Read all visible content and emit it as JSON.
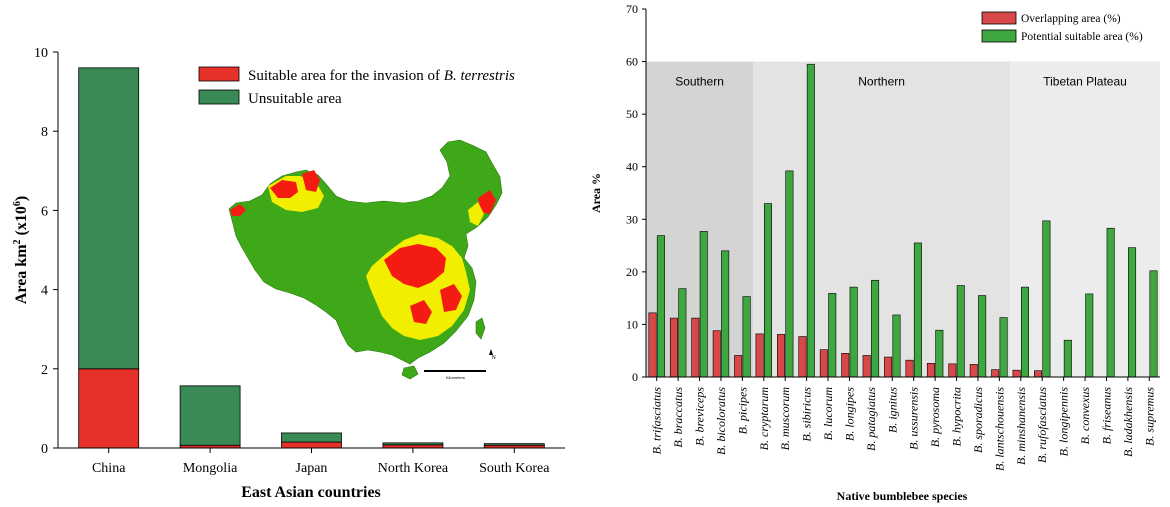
{
  "colors": {
    "suitable": "#e5312a",
    "unsuitable": "#3a8a55",
    "overlap": "#d94848",
    "potential": "#3fa73f",
    "region_southern": "#d4d4d4",
    "region_northern": "#e3e3e3",
    "region_tibet": "#ececec",
    "map_green": "#3ea818",
    "map_yellow": "#f2ee00",
    "map_red": "#f41b12"
  },
  "inset_map": {
    "scale_label": "Kilometers",
    "north_label": "N"
  },
  "chart_data": [
    {
      "type": "bar",
      "stacked": true,
      "categories": [
        "China",
        "Mongolia",
        "Japan",
        "North Korea",
        "South Korea"
      ],
      "series": [
        {
          "name_prefix": "Suitable area for the invasion of ",
          "name_italic": "B. terrestris",
          "values": [
            2.0,
            0.07,
            0.15,
            0.08,
            0.07
          ]
        },
        {
          "name": "Unsuitable area",
          "values": [
            7.6,
            1.5,
            0.23,
            0.05,
            0.04
          ]
        }
      ],
      "xlabel": "East Asian countries",
      "ylabel": "Area km",
      "ylabel_sup": "2",
      "ylabel_tail": " (x10",
      "ylabel_sup2": "6",
      "ylabel_end": ")",
      "ylim": [
        0,
        10
      ],
      "yticks": [
        "0",
        "2",
        "4",
        "6",
        "8",
        "10"
      ],
      "legend_position": "top-right"
    },
    {
      "type": "bar",
      "categories": [
        "B. trifasciatus",
        "B. braccatus",
        "B. breviceps",
        "B. bicoloratus",
        "B. picipes",
        "B. cryptarum",
        "B. muscorum",
        "B. sibiricus",
        "B. lucorum",
        "B. longipes",
        "B. patagiatus",
        "B. ignitus",
        "B. ussurensis",
        "B. pyrosoma",
        "B. hypocrita",
        "B. sporadicus",
        "B. lantschouensis",
        "B. minshanensis",
        "B. rufofasciatus",
        "B. longipennis",
        "B. convexus",
        "B. friseanus",
        "B. ladakhensis",
        "B. supremus"
      ],
      "series": [
        {
          "name": "Overlapping area  (%)",
          "values": [
            12.2,
            11.2,
            11.2,
            8.8,
            4.1,
            8.2,
            8.1,
            7.7,
            5.2,
            4.5,
            4.1,
            3.8,
            3.2,
            2.6,
            2.5,
            2.4,
            1.4,
            1.3,
            1.2,
            0,
            0,
            0,
            0,
            0
          ]
        },
        {
          "name": "Potential suitable area (%)",
          "values": [
            26.9,
            16.8,
            27.7,
            24.0,
            15.3,
            33.0,
            39.2,
            59.5,
            15.9,
            17.1,
            18.4,
            11.8,
            25.5,
            8.9,
            17.4,
            15.5,
            11.3,
            17.1,
            29.7,
            7.0,
            15.8,
            28.3,
            24.6,
            20.2
          ]
        }
      ],
      "regions": [
        {
          "label": "Southern",
          "start": 0,
          "end": 5
        },
        {
          "label": "Northern",
          "start": 5,
          "end": 17
        },
        {
          "label": "Tibetan Plateau",
          "start": 17,
          "end": 24
        }
      ],
      "xlabel": "Native bumblebee species",
      "ylabel": "Area %",
      "ylim": [
        0,
        70
      ],
      "yticks": [
        "0",
        "10",
        "20",
        "30",
        "40",
        "50",
        "60",
        "70"
      ],
      "legend_position": "top-right"
    }
  ]
}
